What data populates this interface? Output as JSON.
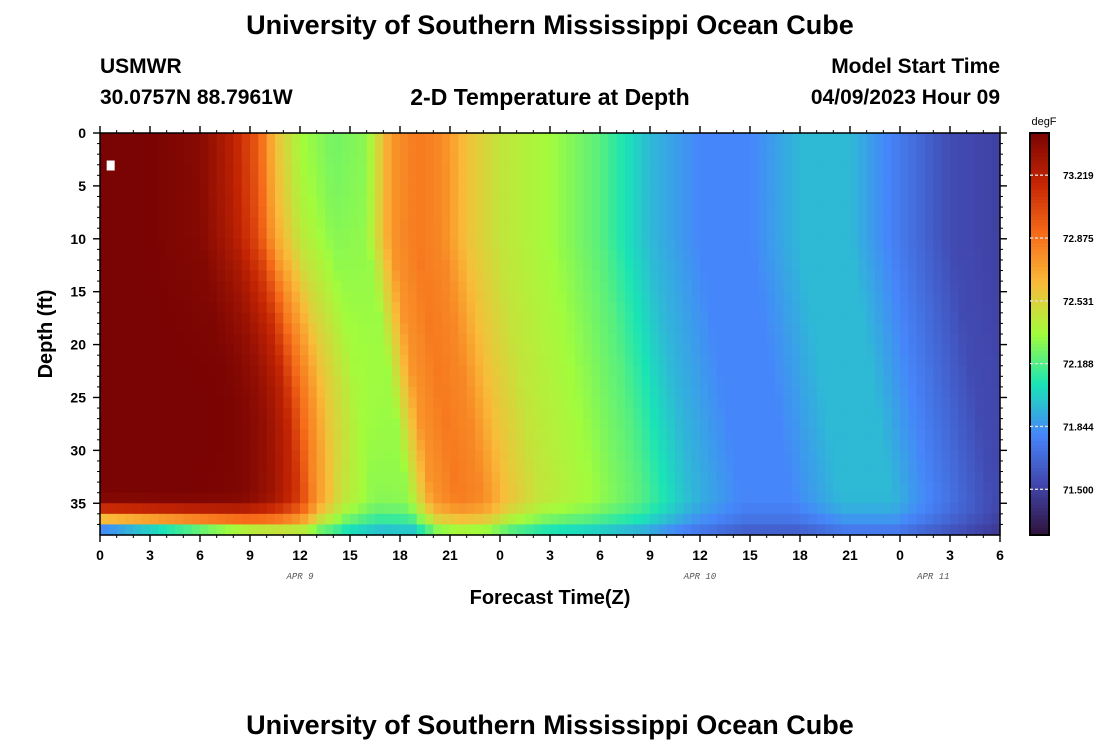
{
  "header": {
    "title": "University of Southern Mississippi Ocean Cube",
    "station": "USMWR",
    "coords": "30.0757N  88.7961W",
    "plot_title": "2-D Temperature at Depth",
    "model_start_label": "Model Start Time",
    "model_start_value": "04/09/2023 Hour 09"
  },
  "footer": {
    "title": "University of Southern Mississippi Ocean Cube"
  },
  "chart_data": {
    "type": "heatmap",
    "title": "2-D Temperature at Depth",
    "xlabel": "Forecast Time(Z)",
    "ylabel": "Depth (ft)",
    "x_tick_labels": [
      "0",
      "3",
      "6",
      "9",
      "12",
      "15",
      "18",
      "21",
      "0",
      "3",
      "6",
      "9",
      "12",
      "15",
      "18",
      "21",
      "0",
      "3",
      "6"
    ],
    "x_hours_range": [
      0,
      54
    ],
    "date_labels": [
      {
        "text": "APR 9",
        "hour": 12
      },
      {
        "text": "APR 10",
        "hour": 36
      },
      {
        "text": "APR 11",
        "hour": 50
      }
    ],
    "y_tick_labels": [
      "0",
      "5",
      "10",
      "15",
      "20",
      "25",
      "30",
      "35"
    ],
    "y_ticks_ft": [
      0,
      5,
      10,
      15,
      20,
      25,
      30,
      35
    ],
    "depth_range_ft": [
      0,
      38
    ],
    "colorbar": {
      "unit": "degF",
      "tick_labels": [
        "73.219",
        "72.875",
        "72.531",
        "72.188",
        "71.844",
        "71.500"
      ],
      "tick_values": [
        73.219,
        72.875,
        72.531,
        72.188,
        71.844,
        71.5
      ],
      "range": [
        71.25,
        73.45
      ],
      "colors": [
        "#30123b",
        "#4146ac",
        "#4686fb",
        "#1ae4b6",
        "#a2fc3c",
        "#fabb39",
        "#f66b19",
        "#c42503",
        "#7a0403"
      ]
    },
    "time_profile": [
      {
        "hour": 0,
        "temp": 73.45
      },
      {
        "hour": 3,
        "temp": 73.45
      },
      {
        "hour": 6,
        "temp": 73.4
      },
      {
        "hour": 8,
        "temp": 73.2
      },
      {
        "hour": 9.5,
        "temp": 72.95
      },
      {
        "hour": 10.5,
        "temp": 72.6
      },
      {
        "hour": 12,
        "temp": 72.35
      },
      {
        "hour": 14,
        "temp": 72.25
      },
      {
        "hour": 16,
        "temp": 72.3
      },
      {
        "hour": 17.5,
        "temp": 72.75
      },
      {
        "hour": 19,
        "temp": 72.85
      },
      {
        "hour": 20.5,
        "temp": 72.8
      },
      {
        "hour": 22,
        "temp": 72.6
      },
      {
        "hour": 24,
        "temp": 72.45
      },
      {
        "hour": 27,
        "temp": 72.35
      },
      {
        "hour": 30,
        "temp": 72.2
      },
      {
        "hour": 33,
        "temp": 71.95
      },
      {
        "hour": 36,
        "temp": 71.8
      },
      {
        "hour": 39,
        "temp": 71.8
      },
      {
        "hour": 42,
        "temp": 71.95
      },
      {
        "hour": 45,
        "temp": 71.95
      },
      {
        "hour": 48,
        "temp": 71.75
      },
      {
        "hour": 51,
        "temp": 71.55
      },
      {
        "hour": 54,
        "temp": 71.5
      }
    ],
    "warm_core": {
      "hour_center": 5.5,
      "depth_ft": 27,
      "temp": 73.45
    },
    "bottom_layer": {
      "depth_ft_start": 34,
      "depth_ft_end": 38,
      "temp_min": 71.3
    }
  }
}
